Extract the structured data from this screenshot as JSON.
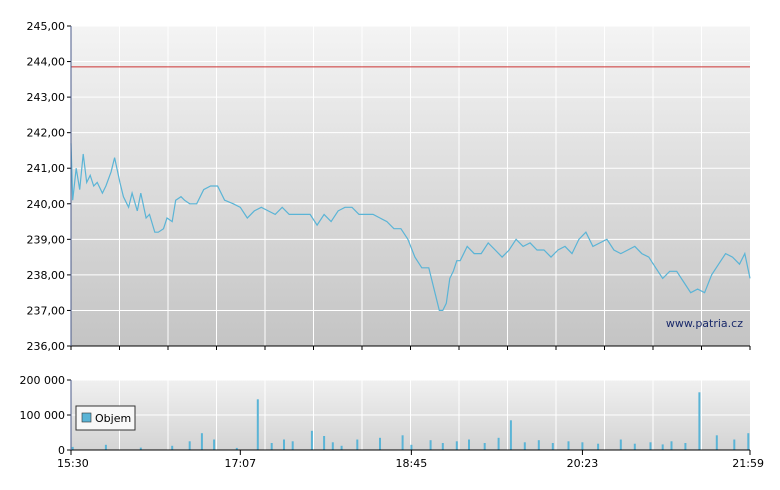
{
  "chart_data": [
    {
      "type": "line",
      "title": "",
      "xlabel": "",
      "ylabel": "",
      "ylim": [
        236.0,
        245.0
      ],
      "yticks": [
        "236,00",
        "237,00",
        "238,00",
        "239,00",
        "240,00",
        "241,00",
        "242,00",
        "243,00",
        "244,00",
        "245,00"
      ],
      "reference_line": {
        "value": 243.85,
        "color": "#cc3333"
      },
      "grid": true,
      "watermark": "www.patria.cz",
      "series": [
        {
          "color": "#5ab4d6",
          "x": [
            "15:30",
            "15:31",
            "15:33",
            "15:35",
            "15:37",
            "15:39",
            "15:41",
            "15:43",
            "15:45",
            "15:48",
            "15:50",
            "15:53",
            "15:55",
            "15:58",
            "16:00",
            "16:03",
            "16:05",
            "16:08",
            "16:10",
            "16:13",
            "16:15",
            "16:18",
            "16:20",
            "16:23",
            "16:25",
            "16:28",
            "16:30",
            "16:33",
            "16:35",
            "16:38",
            "16:42",
            "16:46",
            "16:50",
            "16:54",
            "16:58",
            "17:03",
            "17:07",
            "17:11",
            "17:15",
            "17:19",
            "17:23",
            "17:27",
            "17:31",
            "17:35",
            "17:39",
            "17:43",
            "17:47",
            "17:51",
            "17:55",
            "17:59",
            "18:03",
            "18:07",
            "18:11",
            "18:15",
            "18:19",
            "18:23",
            "18:27",
            "18:31",
            "18:35",
            "18:39",
            "18:43",
            "18:47",
            "18:51",
            "18:55",
            "18:59",
            "19:01",
            "19:03",
            "19:05",
            "19:07",
            "19:09",
            "19:11",
            "19:13",
            "19:17",
            "19:21",
            "19:25",
            "19:29",
            "19:33",
            "19:37",
            "19:41",
            "19:45",
            "19:49",
            "19:53",
            "19:57",
            "20:01",
            "20:05",
            "20:09",
            "20:13",
            "20:17",
            "20:21",
            "20:25",
            "20:29",
            "20:33",
            "20:37",
            "20:41",
            "20:45",
            "20:49",
            "20:53",
            "20:57",
            "21:01",
            "21:05",
            "21:09",
            "21:13",
            "21:17",
            "21:21",
            "21:25",
            "21:29",
            "21:33",
            "21:37",
            "21:41",
            "21:45",
            "21:49",
            "21:53",
            "21:56",
            "21:59"
          ],
          "values": [
            241.7,
            240.1,
            241.0,
            240.4,
            241.4,
            240.6,
            240.8,
            240.5,
            240.6,
            240.3,
            240.5,
            240.9,
            241.3,
            240.6,
            240.2,
            239.9,
            240.3,
            239.8,
            240.3,
            239.6,
            239.7,
            239.2,
            239.2,
            239.3,
            239.6,
            239.5,
            240.1,
            240.2,
            240.1,
            240.0,
            240.0,
            240.4,
            240.5,
            240.5,
            240.1,
            240.0,
            239.9,
            239.6,
            239.8,
            239.9,
            239.8,
            239.7,
            239.9,
            239.7,
            239.7,
            239.7,
            239.7,
            239.4,
            239.7,
            239.5,
            239.8,
            239.9,
            239.9,
            239.7,
            239.7,
            239.7,
            239.6,
            239.5,
            239.3,
            239.3,
            239.0,
            238.5,
            238.2,
            238.2,
            237.4,
            237.0,
            237.0,
            237.2,
            237.9,
            238.1,
            238.4,
            238.4,
            238.8,
            238.6,
            238.6,
            238.9,
            238.7,
            238.5,
            238.7,
            239.0,
            238.8,
            238.9,
            238.7,
            238.7,
            238.5,
            238.7,
            238.8,
            238.6,
            239.0,
            239.2,
            238.8,
            238.9,
            239.0,
            238.7,
            238.6,
            238.7,
            238.8,
            238.6,
            238.5,
            238.2,
            237.9,
            238.1,
            238.1,
            237.8,
            237.5,
            237.6,
            237.5,
            238.0,
            238.3,
            238.6,
            238.5,
            238.3,
            238.6,
            237.9
          ]
        }
      ]
    },
    {
      "type": "bar",
      "ylim": [
        0,
        200000
      ],
      "yticks": [
        "0",
        "100 000",
        "200 000"
      ],
      "xticks": [
        "15:30",
        "17:07",
        "18:45",
        "20:23",
        "21:59"
      ],
      "legend": {
        "label": "Objem",
        "placement": "left"
      },
      "grid": true,
      "series": [
        {
          "name": "Objem",
          "color": "#5ab4d6",
          "x": [
            "15:31",
            "15:50",
            "16:10",
            "16:28",
            "16:38",
            "16:45",
            "16:52",
            "17:05",
            "17:17",
            "17:25",
            "17:32",
            "17:37",
            "17:48",
            "17:55",
            "18:00",
            "18:05",
            "18:14",
            "18:27",
            "18:40",
            "18:45",
            "18:56",
            "19:03",
            "19:11",
            "19:18",
            "19:27",
            "19:35",
            "19:42",
            "19:50",
            "19:58",
            "20:06",
            "20:15",
            "20:23",
            "20:32",
            "20:45",
            "20:53",
            "21:02",
            "21:09",
            "21:14",
            "21:22",
            "21:30",
            "21:40",
            "21:50",
            "21:58"
          ],
          "values": [
            9000,
            15000,
            7000,
            12000,
            25000,
            48000,
            30000,
            6000,
            145000,
            20000,
            30000,
            25000,
            55000,
            40000,
            22000,
            12000,
            30000,
            35000,
            42000,
            15000,
            28000,
            20000,
            25000,
            30000,
            20000,
            35000,
            85000,
            22000,
            28000,
            20000,
            25000,
            22000,
            18000,
            30000,
            18000,
            22000,
            16000,
            25000,
            20000,
            165000,
            42000,
            30000,
            48000
          ]
        }
      ]
    }
  ]
}
